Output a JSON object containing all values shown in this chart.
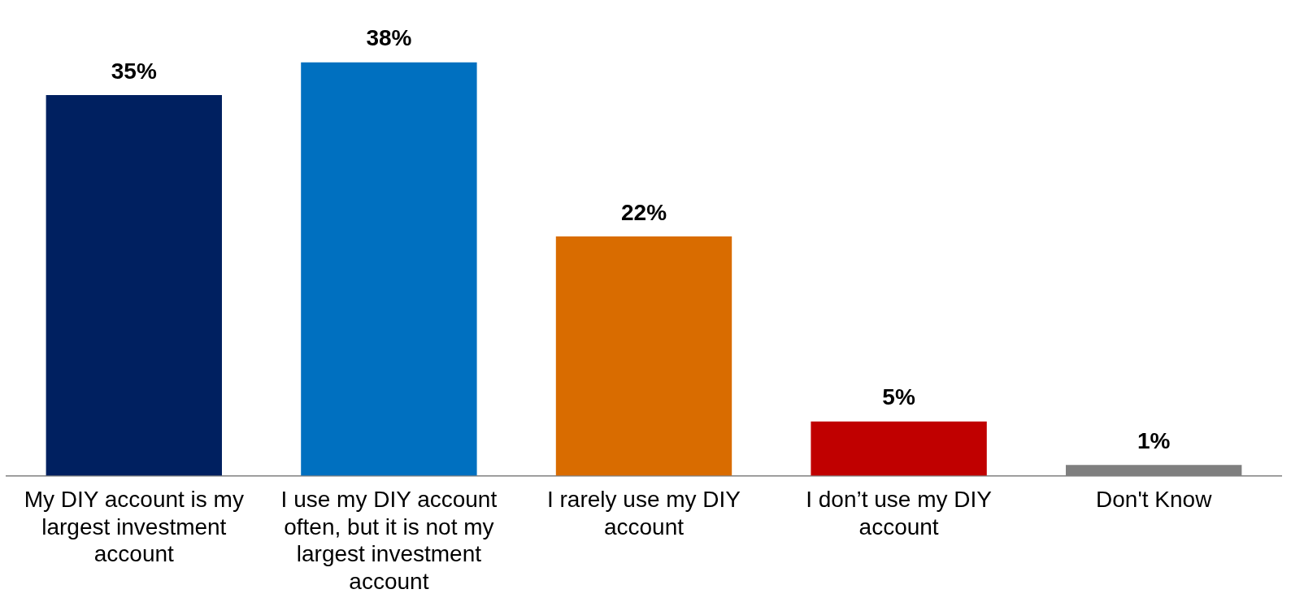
{
  "chart_data": {
    "type": "bar",
    "categories": [
      "My DIY account is my largest investment account",
      "I use my DIY account often, but it is not my largest investment account",
      "I rarely use my DIY account",
      "I don’t use my DIY account",
      "Don't Know"
    ],
    "values": [
      35,
      38,
      22,
      5,
      1
    ],
    "value_labels": [
      "35%",
      "38%",
      "22%",
      "5%",
      "1%"
    ],
    "colors": [
      "#002060",
      "#0070c0",
      "#d96c00",
      "#c00000",
      "#7f7f7f"
    ]
  }
}
